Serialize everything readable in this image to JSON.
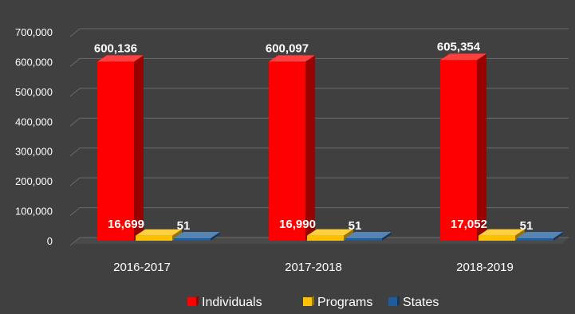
{
  "chart_data": {
    "type": "bar",
    "categories": [
      "2016-2017",
      "2017-2018",
      "2018-2019"
    ],
    "series": [
      {
        "name": "Individuals",
        "values": [
          600136,
          600097,
          605354
        ],
        "labels": [
          "600,136",
          "600,097",
          "605,354"
        ],
        "color": "#ff0000"
      },
      {
        "name": "Programs",
        "values": [
          16699,
          16990,
          17052
        ],
        "labels": [
          "16,699",
          "16,990",
          "17,052"
        ],
        "color": "#ffc000"
      },
      {
        "name": "States",
        "values": [
          51,
          51,
          51
        ],
        "labels": [
          "51",
          "51",
          "51"
        ],
        "color": "#1f5c99"
      }
    ],
    "yticks": [
      "0",
      "100,000",
      "200,000",
      "300,000",
      "400,000",
      "500,000",
      "600,000",
      "700,000"
    ],
    "ylim": [
      0,
      700000
    ],
    "grid": true,
    "legend_position": "bottom",
    "title": "",
    "xlabel": "",
    "ylabel": ""
  }
}
